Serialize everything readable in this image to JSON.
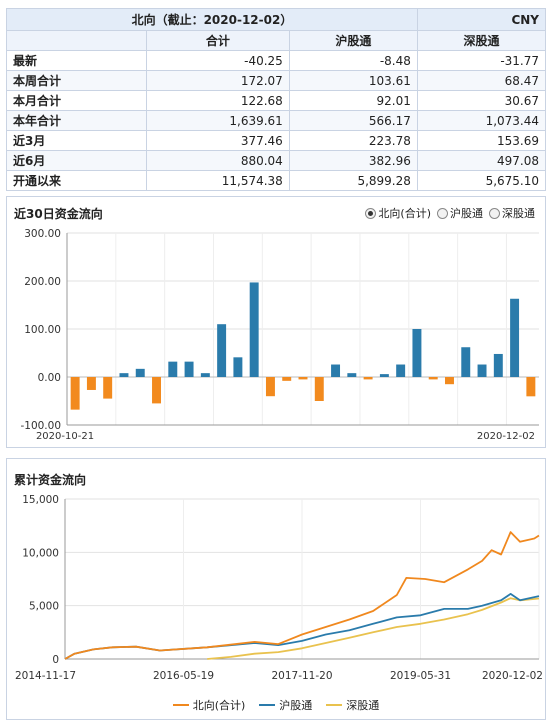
{
  "table": {
    "title": "北向（截止：2020-12-02）",
    "currency": "CNY",
    "columns": [
      "合计",
      "沪股通",
      "深股通"
    ],
    "rows": [
      {
        "label": "最新",
        "values": [
          "-40.25",
          "-8.48",
          "-31.77"
        ]
      },
      {
        "label": "本周合计",
        "values": [
          "172.07",
          "103.61",
          "68.47"
        ]
      },
      {
        "label": "本月合计",
        "values": [
          "122.68",
          "92.01",
          "30.67"
        ]
      },
      {
        "label": "本年合计",
        "values": [
          "1,639.61",
          "566.17",
          "1,073.44"
        ]
      },
      {
        "label": "近3月",
        "values": [
          "377.46",
          "223.78",
          "153.69"
        ]
      },
      {
        "label": "近6月",
        "values": [
          "880.04",
          "382.96",
          "497.08"
        ]
      },
      {
        "label": "开通以来",
        "values": [
          "11,574.38",
          "5,899.28",
          "5,675.10"
        ]
      }
    ]
  },
  "panel1": {
    "title": "近30日资金流向",
    "radios": [
      {
        "label": "北向(合计)",
        "selected": true
      },
      {
        "label": "沪股通",
        "selected": false
      },
      {
        "label": "深股通",
        "selected": false
      }
    ]
  },
  "panel2": {
    "title": "累计资金流向"
  },
  "colors": {
    "positive": "#2a7bab",
    "negative": "#f28a1e",
    "north": "#f0881e",
    "sh": "#2a7bab",
    "sz": "#e9c24e"
  },
  "chart_data": [
    {
      "type": "bar",
      "title": "近30日资金流向",
      "x_start_label": "2020-10-21",
      "x_end_label": "2020-12-02",
      "ylim": [
        -100,
        300
      ],
      "yticks": [
        "-100.00",
        "0.00",
        "100.00",
        "200.00",
        "300.00"
      ],
      "ytick_values": [
        -100,
        0,
        100,
        200,
        300
      ],
      "values": [
        -68,
        -27,
        -45,
        8,
        17,
        -55,
        32,
        32,
        8,
        110,
        41,
        197,
        -40,
        -8,
        -5,
        -50,
        26,
        8,
        -5,
        6,
        26,
        100,
        -5,
        -15,
        62,
        26,
        48,
        163,
        -40.25
      ],
      "grid": true
    },
    {
      "type": "line",
      "title": "累计资金流向",
      "x_labels": [
        "2014-11-17",
        "2016-05-19",
        "2017-11-20",
        "2019-05-31",
        "2020-12-02"
      ],
      "ylim": [
        0,
        15000
      ],
      "yticks": [
        "0",
        "5,000",
        "10,000",
        "15,000"
      ],
      "ytick_values": [
        0,
        5000,
        10000,
        15000
      ],
      "grid": true,
      "legend_position": "bottom",
      "series": [
        {
          "name": "北向(合计)",
          "color": "#f0881e",
          "points": [
            [
              0,
              0
            ],
            [
              0.02,
              500
            ],
            [
              0.06,
              900
            ],
            [
              0.1,
              1100
            ],
            [
              0.15,
              1150
            ],
            [
              0.2,
              800
            ],
            [
              0.3,
              1100
            ],
            [
              0.4,
              1600
            ],
            [
              0.45,
              1400
            ],
            [
              0.5,
              2300
            ],
            [
              0.55,
              3000
            ],
            [
              0.6,
              3700
            ],
            [
              0.65,
              4500
            ],
            [
              0.7,
              6000
            ],
            [
              0.72,
              7600
            ],
            [
              0.76,
              7500
            ],
            [
              0.8,
              7200
            ],
            [
              0.85,
              8400
            ],
            [
              0.88,
              9200
            ],
            [
              0.9,
              10200
            ],
            [
              0.92,
              9800
            ],
            [
              0.94,
              11900
            ],
            [
              0.96,
              11000
            ],
            [
              0.99,
              11300
            ],
            [
              1.0,
              11574
            ]
          ]
        },
        {
          "name": "沪股通",
          "color": "#2a7bab",
          "points": [
            [
              0,
              0
            ],
            [
              0.02,
              500
            ],
            [
              0.06,
              900
            ],
            [
              0.1,
              1100
            ],
            [
              0.15,
              1150
            ],
            [
              0.2,
              800
            ],
            [
              0.3,
              1100
            ],
            [
              0.4,
              1500
            ],
            [
              0.45,
              1300
            ],
            [
              0.5,
              1700
            ],
            [
              0.55,
              2300
            ],
            [
              0.6,
              2700
            ],
            [
              0.65,
              3300
            ],
            [
              0.7,
              3900
            ],
            [
              0.75,
              4100
            ],
            [
              0.8,
              4700
            ],
            [
              0.85,
              4700
            ],
            [
              0.88,
              5000
            ],
            [
              0.92,
              5500
            ],
            [
              0.94,
              6100
            ],
            [
              0.96,
              5500
            ],
            [
              1.0,
              5899
            ]
          ]
        },
        {
          "name": "深股通",
          "color": "#e9c24e",
          "points": [
            [
              0.3,
              0
            ],
            [
              0.35,
              200
            ],
            [
              0.4,
              500
            ],
            [
              0.45,
              650
            ],
            [
              0.5,
              1000
            ],
            [
              0.55,
              1500
            ],
            [
              0.6,
              2000
            ],
            [
              0.65,
              2500
            ],
            [
              0.7,
              3000
            ],
            [
              0.75,
              3300
            ],
            [
              0.8,
              3700
            ],
            [
              0.85,
              4200
            ],
            [
              0.88,
              4600
            ],
            [
              0.92,
              5300
            ],
            [
              0.94,
              5700
            ],
            [
              0.96,
              5500
            ],
            [
              1.0,
              5675
            ]
          ]
        }
      ]
    }
  ]
}
